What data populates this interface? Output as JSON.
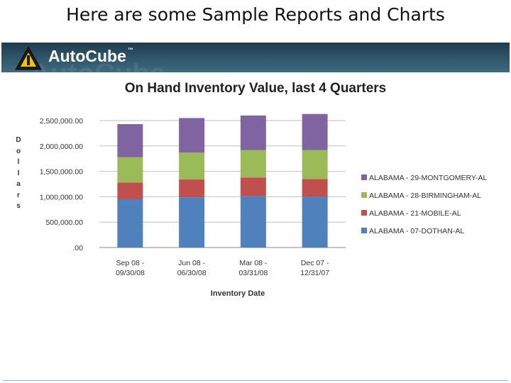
{
  "slide": {
    "title": "Here are some Sample Reports and Charts"
  },
  "brand": {
    "name": "AutoCube",
    "trademark": "™",
    "colors": {
      "banner": "#2d5266",
      "icon_yellow": "#f2c200"
    }
  },
  "chart_data": {
    "type": "bar",
    "stacked": true,
    "title": "On Hand Inventory Value, last 4 Quarters",
    "xlabel": "Inventory Date",
    "ylabel": "Dollars",
    "ylim": [
      0,
      2500000
    ],
    "yticks": [
      0,
      500000,
      1000000,
      1500000,
      2000000,
      2500000
    ],
    "ytick_labels": [
      ".00",
      "500,000.00",
      "1,000,000.00",
      "1,500,000.00",
      "2,000,000.00",
      "2,500,000.00"
    ],
    "grid": true,
    "legend_position": "right",
    "categories": [
      [
        "Sep 08 -",
        "09/30/08"
      ],
      [
        "Jun 08 -",
        "06/30/08"
      ],
      [
        "Mar 08 -",
        "03/31/08"
      ],
      [
        "Dec 07 -",
        "12/31/07"
      ]
    ],
    "series": [
      {
        "name": "ALABAMA - 07-DOTHAN-AL",
        "color": "#4f81bd",
        "values": [
          950000,
          990000,
          1010000,
          1000000
        ]
      },
      {
        "name": "ALABAMA - 21-MOBILE-AL",
        "color": "#c0504d",
        "values": [
          330000,
          350000,
          370000,
          350000
        ]
      },
      {
        "name": "ALABAMA - 28-BIRMINGHAM-AL",
        "color": "#9bbb59",
        "values": [
          500000,
          530000,
          540000,
          570000
        ]
      },
      {
        "name": "ALABAMA - 29-MONTGOMERY-AL",
        "color": "#8064a2",
        "values": [
          650000,
          680000,
          680000,
          710000
        ]
      }
    ]
  }
}
